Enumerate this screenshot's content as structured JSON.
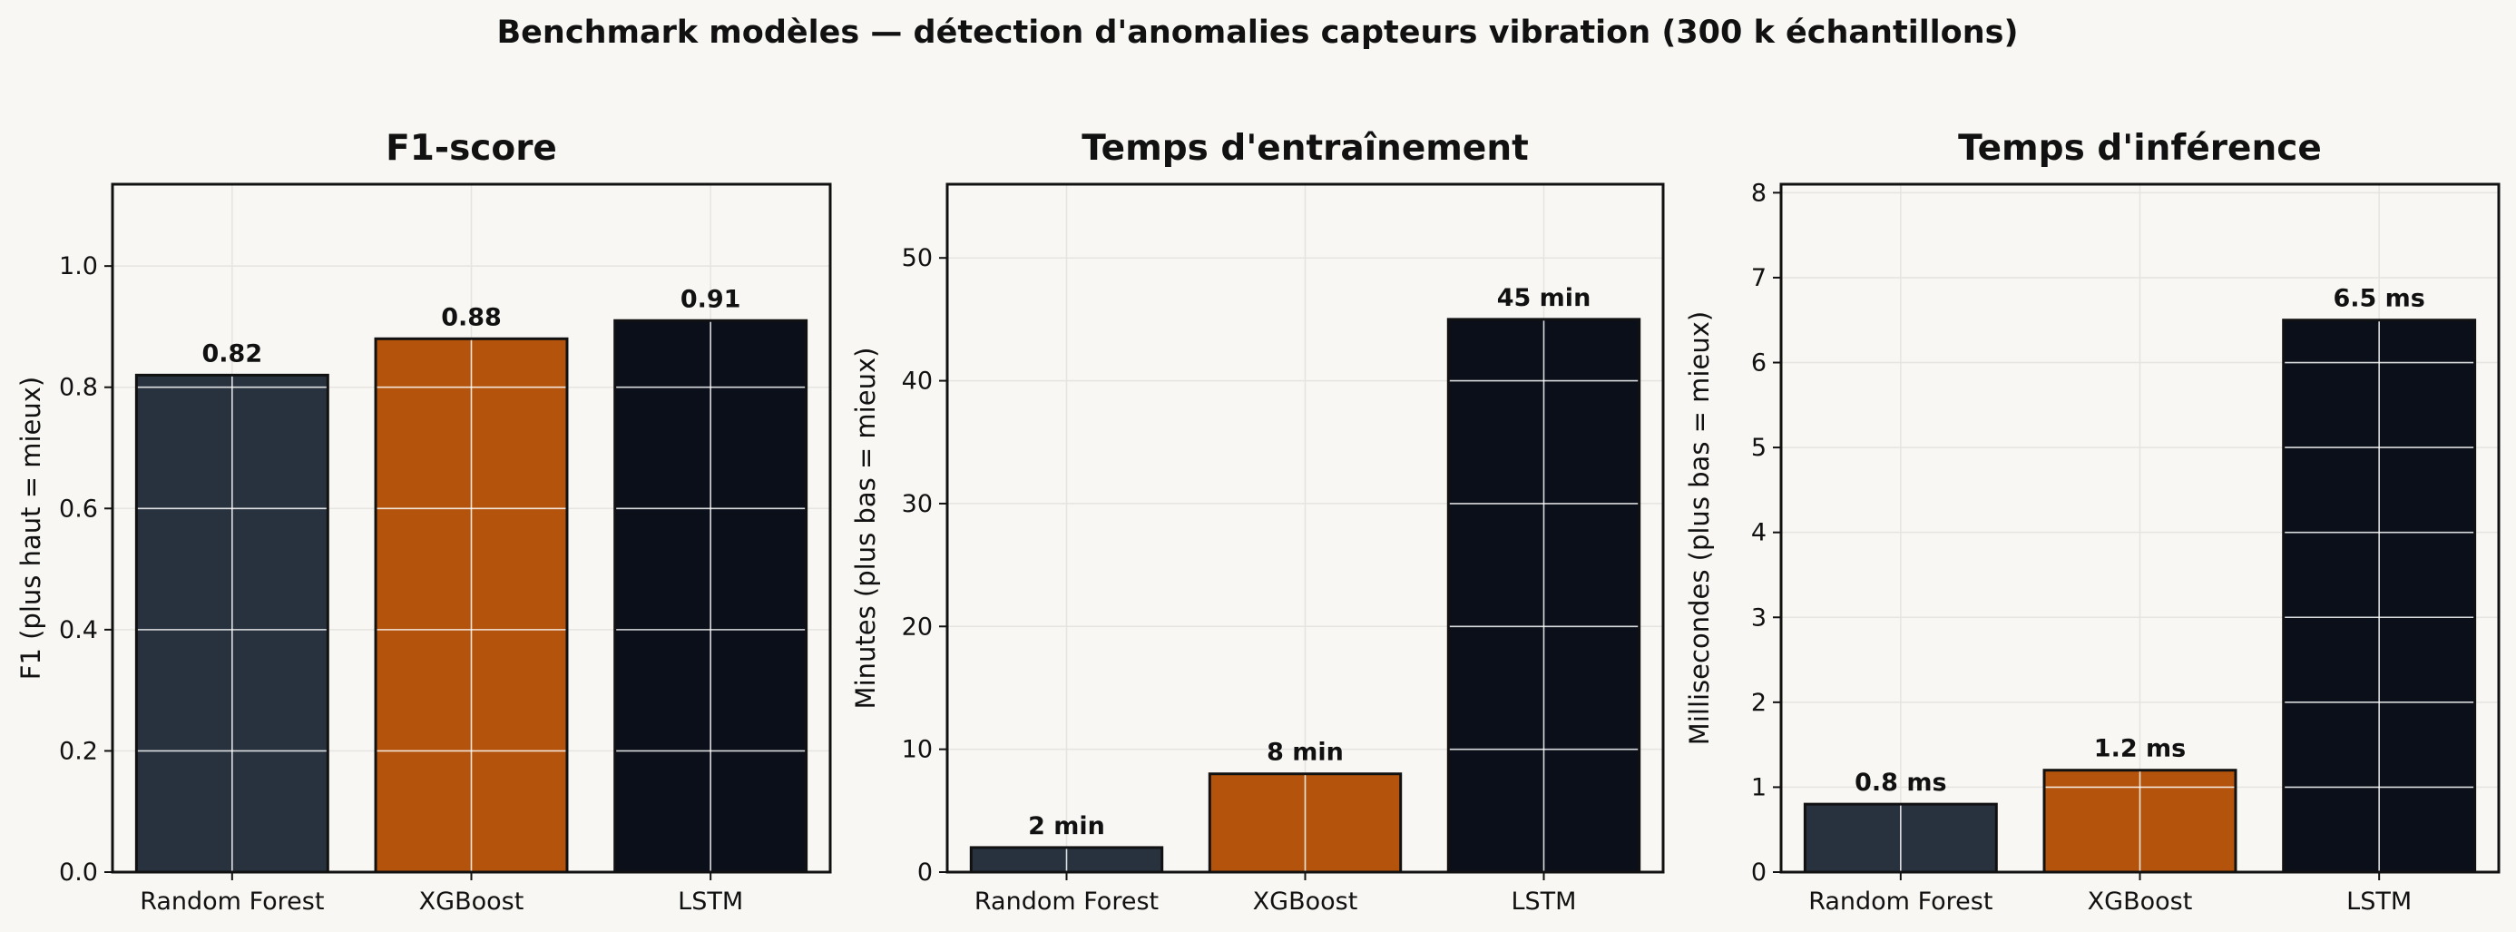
{
  "figure_title": "Benchmark modèles — détection d'anomalies capteurs vibration (300 k échantillons)",
  "colors": {
    "background": "#f8f7f4",
    "bar_colors": [
      "#28323f",
      "#b4540c",
      "#0a0f1a"
    ],
    "bar_edge": "#111111",
    "grid": "#e6e4e0",
    "bar_grid": "#ffffff"
  },
  "chart_data": [
    {
      "type": "bar",
      "title": "F1-score",
      "ylabel": "F1 (plus haut = mieux)",
      "categories": [
        "Random Forest",
        "XGBoost",
        "LSTM"
      ],
      "values": [
        0.82,
        0.88,
        0.91
      ],
      "data_labels": [
        "0.82",
        "0.88",
        "0.91"
      ],
      "ylim": [
        0,
        1.135
      ],
      "yticks": [
        0.0,
        0.2,
        0.4,
        0.6,
        0.8,
        1.0
      ],
      "ytick_labels": [
        "0.0",
        "0.2",
        "0.4",
        "0.6",
        "0.8",
        "1.0"
      ],
      "grid": true
    },
    {
      "type": "bar",
      "title": "Temps d'entraînement",
      "ylabel": "Minutes (plus bas = mieux)",
      "categories": [
        "Random Forest",
        "XGBoost",
        "LSTM"
      ],
      "values": [
        2,
        8,
        45
      ],
      "data_labels": [
        "2 min",
        "8 min",
        "45 min"
      ],
      "ylim": [
        0,
        56
      ],
      "yticks": [
        0,
        10,
        20,
        30,
        40,
        50
      ],
      "ytick_labels": [
        "0",
        "10",
        "20",
        "30",
        "40",
        "50"
      ],
      "grid": true
    },
    {
      "type": "bar",
      "title": "Temps d'inférence",
      "ylabel": "Millisecondes (plus bas = mieux)",
      "categories": [
        "Random Forest",
        "XGBoost",
        "LSTM"
      ],
      "values": [
        0.8,
        1.2,
        6.5
      ],
      "data_labels": [
        "0.8 ms",
        "1.2 ms",
        "6.5 ms"
      ],
      "ylim": [
        0,
        8.1
      ],
      "yticks": [
        0,
        1,
        2,
        3,
        4,
        5,
        6,
        7,
        8
      ],
      "ytick_labels": [
        "0",
        "1",
        "2",
        "3",
        "4",
        "5",
        "6",
        "7",
        "8"
      ],
      "grid": true
    }
  ]
}
